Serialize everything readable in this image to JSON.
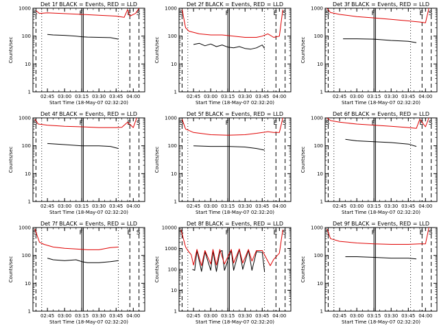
{
  "figure": {
    "colors": {
      "events": "#000000",
      "lld": "#e00000",
      "axes": "#000000",
      "background": "#ffffff"
    },
    "x_tick_labels": [
      "02:45",
      "03:00",
      "03:15",
      "03:30",
      "03:45",
      "04:00"
    ],
    "x_axis_label": "Start Time (18-May-07 02:32:20)",
    "y_axis_label": "Counts/sec",
    "marker_labels": {
      "S": "S",
      "F": "F",
      "E": "E"
    }
  },
  "chart_data": [
    {
      "type": "line",
      "title": "Det 1f BLACK = Events, RED = LLD",
      "y_scale": "log",
      "ylim": [
        1,
        1000
      ],
      "y_tick_labels": [
        "1",
        "10",
        "100",
        "1000"
      ],
      "xlim": [
        "02:32:20",
        "04:10"
      ],
      "series": [
        {
          "name": "Events",
          "color": "#000000",
          "x": [
            "02:45",
            "02:50",
            "03:00",
            "03:10",
            "03:15",
            "03:20",
            "03:30",
            "03:40",
            "03:47"
          ],
          "values": [
            115,
            110,
            106,
            100,
            95,
            92,
            90,
            88,
            78
          ]
        },
        {
          "name": "LLD",
          "color": "#e00000",
          "x": [
            "02:35",
            "02:38",
            "02:45",
            "03:00",
            "03:15",
            "03:30",
            "03:45",
            "03:52",
            "03:55",
            "03:57",
            "04:02",
            "04:05"
          ],
          "values": [
            820,
            650,
            680,
            640,
            600,
            560,
            520,
            470,
            900,
            520,
            650,
            1000
          ]
        }
      ]
    },
    {
      "type": "line",
      "title": "Det 2f BLACK = Events, RED = LLD",
      "y_scale": "log",
      "ylim": [
        1,
        1000
      ],
      "y_tick_labels": [
        "1",
        "10",
        "100",
        "1000"
      ],
      "xlim": [
        "02:32:20",
        "04:10"
      ],
      "series": [
        {
          "name": "Events",
          "color": "#000000",
          "x": [
            "02:45",
            "02:50",
            "02:55",
            "03:00",
            "03:05",
            "03:10",
            "03:15",
            "03:20",
            "03:25",
            "03:30",
            "03:35",
            "03:40",
            "03:45",
            "03:47"
          ],
          "values": [
            50,
            55,
            45,
            52,
            42,
            48,
            40,
            38,
            42,
            36,
            34,
            38,
            48,
            36
          ]
        },
        {
          "name": "LLD",
          "color": "#e00000",
          "x": [
            "02:35",
            "02:38",
            "02:41",
            "02:50",
            "03:00",
            "03:10",
            "03:20",
            "03:30",
            "03:40",
            "03:45",
            "03:50",
            "03:55",
            "04:00",
            "04:03"
          ],
          "values": [
            900,
            200,
            150,
            120,
            110,
            110,
            100,
            90,
            90,
            100,
            120,
            90,
            100,
            900
          ]
        }
      ]
    },
    {
      "type": "line",
      "title": "Det 3f BLACK = Events, RED = LLD",
      "y_scale": "log",
      "ylim": [
        1,
        1000
      ],
      "y_tick_labels": [
        "1",
        "10",
        "100",
        "1000"
      ],
      "xlim": [
        "02:32:20",
        "04:10"
      ],
      "series": [
        {
          "name": "Events",
          "color": "#000000",
          "x": [
            "02:48",
            "03:00",
            "03:15",
            "03:30",
            "03:45",
            "03:52"
          ],
          "values": [
            80,
            80,
            78,
            70,
            65,
            58
          ]
        },
        {
          "name": "LLD",
          "color": "#e00000",
          "x": [
            "02:34",
            "02:37",
            "02:45",
            "03:00",
            "03:15",
            "03:30",
            "03:45",
            "03:55",
            "04:00",
            "04:03"
          ],
          "values": [
            1000,
            700,
            600,
            500,
            450,
            400,
            350,
            320,
            300,
            1000
          ]
        }
      ]
    },
    {
      "type": "line",
      "title": "Det 4f BLACK = Events, RED = LLD",
      "y_scale": "log",
      "ylim": [
        1,
        1000
      ],
      "y_tick_labels": [
        "1",
        "10",
        "100",
        "1000"
      ],
      "xlim": [
        "02:32:20",
        "04:10"
      ],
      "series": [
        {
          "name": "Events",
          "color": "#000000",
          "x": [
            "02:45",
            "03:00",
            "03:15",
            "03:30",
            "03:40",
            "03:47"
          ],
          "values": [
            120,
            110,
            100,
            100,
            95,
            80
          ]
        },
        {
          "name": "LLD",
          "color": "#e00000",
          "x": [
            "02:34",
            "02:37",
            "02:45",
            "03:00",
            "03:15",
            "03:30",
            "03:45",
            "03:50",
            "03:55",
            "04:00",
            "04:03"
          ],
          "values": [
            900,
            600,
            550,
            500,
            480,
            450,
            450,
            460,
            700,
            450,
            1000
          ]
        }
      ]
    },
    {
      "type": "line",
      "title": "Det 5f BLACK = Events, RED = LLD",
      "y_scale": "log",
      "ylim": [
        1,
        1000
      ],
      "y_tick_labels": [
        "1",
        "10",
        "100",
        "1000"
      ],
      "xlim": [
        "02:32:20",
        "04:10"
      ],
      "series": [
        {
          "name": "Events",
          "color": "#000000",
          "x": [
            "02:45",
            "03:00",
            "03:15",
            "03:30",
            "03:40",
            "03:47"
          ],
          "values": [
            100,
            95,
            95,
            90,
            80,
            70
          ]
        },
        {
          "name": "LLD",
          "color": "#e00000",
          "x": [
            "02:35",
            "02:38",
            "02:45",
            "03:00",
            "03:15",
            "03:30",
            "03:40",
            "03:50",
            "03:55",
            "04:00",
            "04:03"
          ],
          "values": [
            900,
            400,
            300,
            250,
            240,
            250,
            280,
            320,
            300,
            300,
            1000
          ]
        }
      ]
    },
    {
      "type": "line",
      "title": "Det 6f BLACK = Events, RED = LLD",
      "y_scale": "log",
      "ylim": [
        1,
        1000
      ],
      "y_tick_labels": [
        "1",
        "10",
        "100",
        "1000"
      ],
      "xlim": [
        "02:32:20",
        "04:10"
      ],
      "series": [
        {
          "name": "Events",
          "color": "#000000",
          "x": [
            "02:50",
            "03:00",
            "03:15",
            "03:30",
            "03:45",
            "03:52"
          ],
          "values": [
            170,
            150,
            140,
            130,
            115,
            95
          ]
        },
        {
          "name": "LLD",
          "color": "#e00000",
          "x": [
            "02:34",
            "02:37",
            "02:45",
            "03:00",
            "03:15",
            "03:30",
            "03:45",
            "03:52",
            "03:55",
            "04:00",
            "04:03"
          ],
          "values": [
            1000,
            800,
            700,
            600,
            550,
            500,
            450,
            420,
            900,
            480,
            1000
          ]
        }
      ]
    },
    {
      "type": "line",
      "title": "Det 7f BLACK = Events, RED = LLD",
      "y_scale": "log",
      "ylim": [
        1,
        1000
      ],
      "y_tick_labels": [
        "1",
        "10",
        "100",
        "1000"
      ],
      "xlim": [
        "02:32:20",
        "04:10"
      ],
      "series": [
        {
          "name": "Events",
          "color": "#000000",
          "x": [
            "02:45",
            "02:50",
            "03:00",
            "03:10",
            "03:15",
            "03:20",
            "03:30",
            "03:40",
            "03:47"
          ],
          "values": [
            80,
            70,
            65,
            70,
            60,
            55,
            55,
            60,
            65
          ]
        },
        {
          "name": "LLD",
          "color": "#e00000",
          "x": [
            "02:34",
            "02:38",
            "02:42",
            "02:50",
            "03:00",
            "03:10",
            "03:20",
            "03:30",
            "03:40",
            "03:47"
          ],
          "values": [
            900,
            300,
            250,
            200,
            180,
            170,
            160,
            160,
            190,
            200
          ]
        }
      ]
    },
    {
      "type": "line",
      "title": "Det 8f BLACK = Events, RED = LLD",
      "y_scale": "log",
      "ylim": [
        1,
        10000
      ],
      "y_tick_labels": [
        "1",
        "10",
        "100",
        "1000",
        "10000"
      ],
      "xlim": [
        "02:32:20",
        "04:10"
      ],
      "series": [
        {
          "name": "Events",
          "color": "#000000",
          "x": [
            "02:44",
            "02:46",
            "02:48",
            "02:52",
            "02:55",
            "03:00",
            "03:02",
            "03:05",
            "03:08",
            "03:10",
            "03:12",
            "03:18",
            "03:20",
            "03:25",
            "03:28",
            "03:33",
            "03:36",
            "03:40",
            "03:45",
            "03:47"
          ],
          "values": [
            100,
            90,
            800,
            80,
            700,
            90,
            750,
            80,
            700,
            800,
            90,
            800,
            90,
            900,
            100,
            850,
            90,
            700,
            650,
            80
          ]
        },
        {
          "name": "LLD",
          "color": "#e00000",
          "x": [
            "02:34",
            "02:38",
            "02:40",
            "02:43",
            "02:45",
            "02:48",
            "02:52",
            "02:55",
            "03:00",
            "03:02",
            "03:05",
            "03:08",
            "03:12",
            "03:18",
            "03:20",
            "03:25",
            "03:28",
            "03:33",
            "03:36",
            "03:40",
            "03:45",
            "03:52",
            "03:55",
            "04:00",
            "04:03"
          ],
          "values": [
            8000,
            1200,
            800,
            500,
            160,
            900,
            150,
            800,
            180,
            900,
            160,
            900,
            180,
            900,
            200,
            950,
            200,
            900,
            250,
            800,
            800,
            150,
            300,
            600,
            8000
          ]
        }
      ]
    },
    {
      "type": "line",
      "title": "Det 9f BLACK = Events, RED = LLD",
      "y_scale": "log",
      "ylim": [
        1,
        1000
      ],
      "y_tick_labels": [
        "1",
        "10",
        "100",
        "1000"
      ],
      "xlim": [
        "02:32:20",
        "04:10"
      ],
      "series": [
        {
          "name": "Events",
          "color": "#000000",
          "x": [
            "02:50",
            "03:00",
            "03:15",
            "03:30",
            "03:45",
            "03:52"
          ],
          "values": [
            90,
            90,
            85,
            80,
            80,
            75
          ]
        },
        {
          "name": "LLD",
          "color": "#e00000",
          "x": [
            "02:34",
            "02:37",
            "02:45",
            "03:00",
            "03:15",
            "03:30",
            "03:45",
            "03:55",
            "04:00",
            "04:03"
          ],
          "values": [
            900,
            400,
            320,
            280,
            260,
            250,
            250,
            260,
            260,
            1000
          ]
        }
      ]
    }
  ]
}
